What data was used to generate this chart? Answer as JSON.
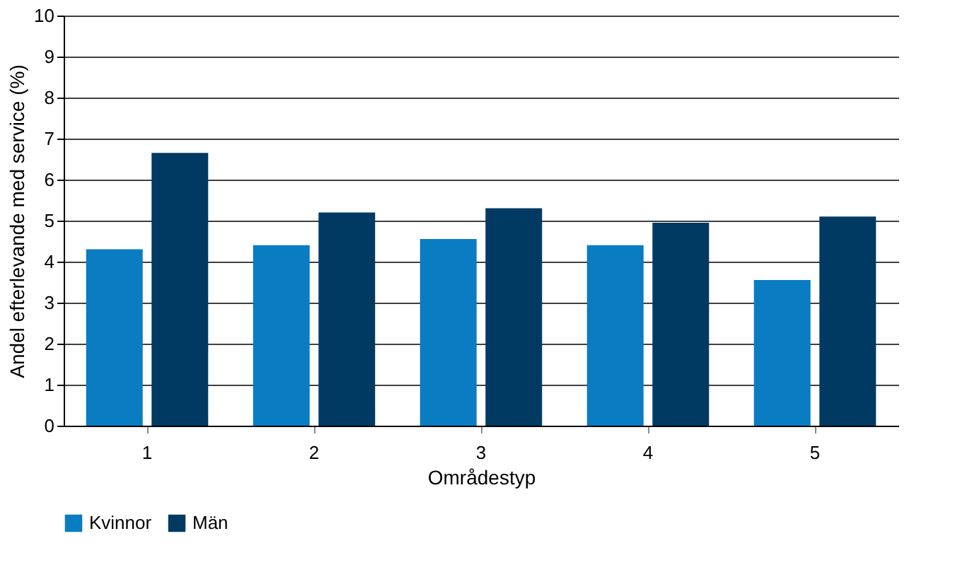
{
  "chart_data": {
    "type": "bar",
    "xlabel": "Områdestyp",
    "ylabel": "Andel efterlevande med service (%)",
    "categories": [
      "1",
      "2",
      "3",
      "4",
      "5"
    ],
    "series": [
      {
        "name": "Kvinnor",
        "color": "#0a7cc1",
        "values": [
          4.3,
          4.4,
          4.55,
          4.4,
          3.55
        ]
      },
      {
        "name": "Män",
        "color": "#003a63",
        "values": [
          6.65,
          5.2,
          5.3,
          4.95,
          5.1
        ]
      }
    ],
    "ylim": [
      0,
      10
    ],
    "yticks": [
      0,
      1,
      2,
      3,
      4,
      5,
      6,
      7,
      8,
      9,
      10
    ],
    "grid": "y",
    "legend": "bottom"
  }
}
